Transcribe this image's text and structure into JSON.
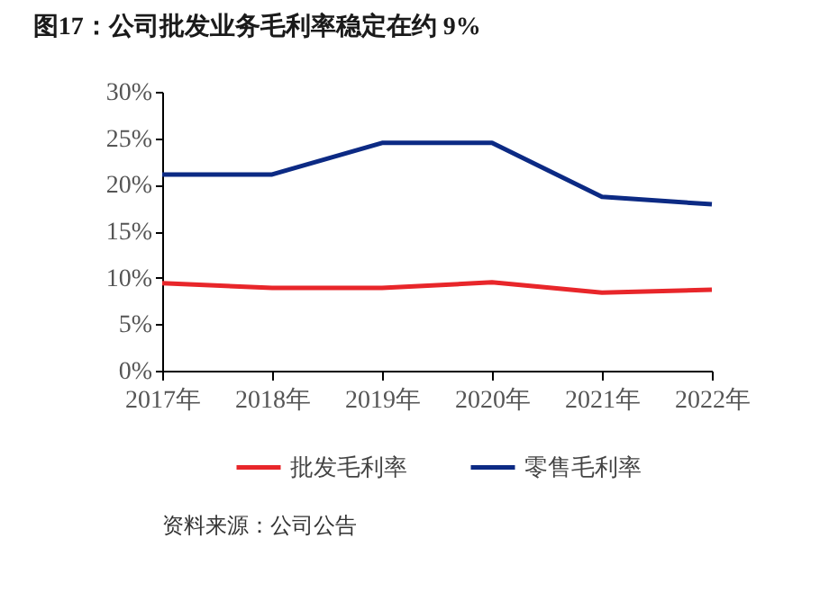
{
  "chart_data": {
    "type": "line",
    "title": "图17：公司批发业务毛利率稳定在约 9%",
    "categories": [
      "2017年",
      "2018年",
      "2019年",
      "2020年",
      "2021年",
      "2022年"
    ],
    "series": [
      {
        "name": "批发毛利率",
        "color": "#e8262a",
        "values": [
          9.4,
          8.9,
          8.9,
          9.5,
          8.4,
          8.7
        ]
      },
      {
        "name": "零售毛利率",
        "color": "#0c2a84",
        "values": [
          21.1,
          21.1,
          24.5,
          24.5,
          18.7,
          17.9
        ]
      }
    ],
    "ylim": [
      0,
      30
    ],
    "yticks": [
      {
        "value": 0,
        "label": "0%"
      },
      {
        "value": 5,
        "label": "5%"
      },
      {
        "value": 10,
        "label": "10%"
      },
      {
        "value": 15,
        "label": "15%"
      },
      {
        "value": 20,
        "label": "20%"
      },
      {
        "value": 25,
        "label": "25%"
      },
      {
        "value": 30,
        "label": "30%"
      }
    ],
    "grid": false,
    "legend": "bottom",
    "marker": "none",
    "line_style": "solid",
    "annotations": [
      "资料来源：公司公告"
    ]
  }
}
